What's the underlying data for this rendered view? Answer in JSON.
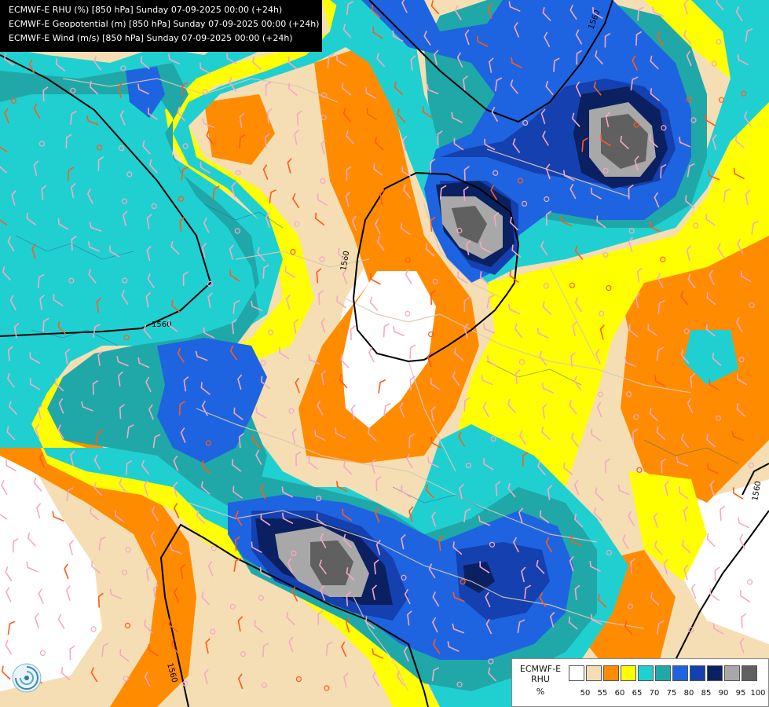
{
  "header": {
    "lines": [
      "ECMWF-E RHU (%) [850 hPa] Sunday 07-09-2025 00:00 (+24h)",
      "ECMWF-E Geopotential (m) [850 hPa] Sunday 07-09-2025 00:00 (+24h)",
      "ECMWF-E Wind (m/s) [850 hPa] Sunday 07-09-2025 00:00 (+24h)"
    ]
  },
  "legend": {
    "title_line1": "ECMWF-E",
    "title_line2": "RHU",
    "unit": "%",
    "levels": [
      "50",
      "55",
      "60",
      "65",
      "70",
      "75",
      "80",
      "85",
      "90",
      "95",
      "100"
    ],
    "colors": [
      "#ffffff",
      "#f5deb3",
      "#ff8c00",
      "#ffff00",
      "#20d0d0",
      "#20a8a8",
      "#1e64e0",
      "#1440b0",
      "#0a2060",
      "#a8a8a8",
      "#606060"
    ]
  },
  "contours": {
    "geopotential_label": "1560"
  },
  "logo": {
    "icon": "swirl-logo-icon"
  }
}
